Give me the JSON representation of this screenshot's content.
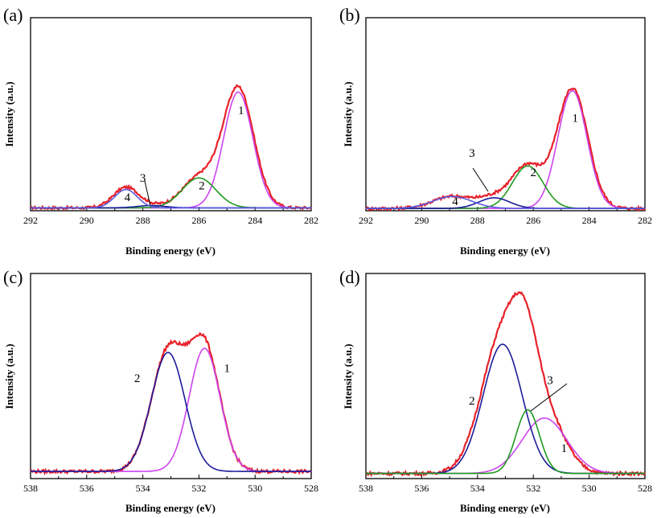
{
  "chart_data": [
    {
      "type": "line",
      "panel": "(a)",
      "xlabel": "Binding energy (eV)",
      "ylabel": "Intensity (a.u.)",
      "xlim": [
        292,
        282
      ],
      "ylim": [
        0,
        1.0
      ],
      "xticks": [
        292,
        290,
        288,
        286,
        284,
        282
      ],
      "series": [
        {
          "name": "envelope",
          "color": "#e8212a",
          "noise": 0.007,
          "baseline": 0.015,
          "peaks": [
            [
              284.6,
              0.62,
              0.55
            ],
            [
              286.0,
              0.155,
              0.6
            ],
            [
              287.7,
              0.012,
              0.5
            ],
            [
              288.6,
              0.105,
              0.45
            ]
          ]
        },
        {
          "name": "1",
          "color": "#cc44ee",
          "baseline": 0.015,
          "peaks": [
            [
              284.6,
              0.6,
              0.52
            ]
          ]
        },
        {
          "name": "2",
          "color": "#1f9a1f",
          "baseline": 0.015,
          "peaks": [
            [
              286.0,
              0.155,
              0.6
            ]
          ]
        },
        {
          "name": "3",
          "color": "#1c1c9a",
          "baseline": 0.015,
          "peaks": [
            [
              287.7,
              0.012,
              0.5
            ]
          ]
        },
        {
          "name": "4",
          "color": "#5a5ae0",
          "baseline": 0.015,
          "peaks": [
            [
              288.6,
              0.095,
              0.4
            ]
          ]
        }
      ],
      "labels": [
        {
          "text": "1",
          "x": 284.5,
          "y": 0.5
        },
        {
          "text": "2",
          "x": 285.9,
          "y": 0.11
        },
        {
          "text": "3",
          "x": 288.0,
          "y": 0.15
        },
        {
          "text": "4",
          "x": 288.55,
          "y": 0.05
        }
      ]
    },
    {
      "type": "line",
      "panel": "(b)",
      "xlabel": "Binding energy (eV)",
      "ylabel": "Intensity (a.u.)",
      "xlim": [
        292,
        282
      ],
      "ylim": [
        0,
        1.0
      ],
      "xticks": [
        292,
        290,
        288,
        286,
        284,
        282
      ],
      "series": [
        {
          "name": "envelope",
          "color": "#e8212a",
          "noise": 0.008,
          "baseline": 0.012,
          "peaks": [
            [
              284.6,
              0.62,
              0.55
            ],
            [
              286.2,
              0.22,
              0.55
            ],
            [
              287.4,
              0.055,
              0.55
            ],
            [
              288.9,
              0.062,
              0.7
            ]
          ]
        },
        {
          "name": "1",
          "color": "#cc44ee",
          "baseline": 0.012,
          "peaks": [
            [
              284.6,
              0.61,
              0.52
            ]
          ]
        },
        {
          "name": "2",
          "color": "#1f9a1f",
          "baseline": 0.012,
          "peaks": [
            [
              286.2,
              0.22,
              0.55
            ]
          ]
        },
        {
          "name": "3",
          "color": "#1c1c9a",
          "baseline": 0.012,
          "peaks": [
            [
              287.4,
              0.055,
              0.55
            ]
          ]
        },
        {
          "name": "4",
          "color": "#5a5ae0",
          "baseline": 0.012,
          "peaks": [
            [
              288.9,
              0.062,
              0.7
            ]
          ]
        }
      ],
      "labels": [
        {
          "text": "1",
          "x": 284.5,
          "y": 0.46
        },
        {
          "text": "2",
          "x": 286.0,
          "y": 0.18
        },
        {
          "text": "3",
          "x": 288.2,
          "y": 0.28
        },
        {
          "text": "4",
          "x": 288.8,
          "y": 0.03
        }
      ]
    },
    {
      "type": "line",
      "panel": "(c)",
      "xlabel": "Binding energy (eV)",
      "ylabel": "Intensity (a.u.)",
      "xlim": [
        538,
        528
      ],
      "ylim": [
        0,
        1.0
      ],
      "xticks": [
        538,
        536,
        534,
        532,
        530,
        528
      ],
      "series": [
        {
          "name": "envelope",
          "color": "#e8212a",
          "noise": 0.008,
          "baseline": 0.035,
          "peaks": [
            [
              531.8,
              0.6,
              0.55
            ],
            [
              533.1,
              0.58,
              0.6
            ]
          ]
        },
        {
          "name": "1",
          "color": "#cc44ee",
          "baseline": 0.035,
          "peaks": [
            [
              531.8,
              0.6,
              0.55
            ]
          ]
        },
        {
          "name": "2",
          "color": "#1c1c9a",
          "baseline": 0.035,
          "peaks": [
            [
              533.1,
              0.58,
              0.6
            ]
          ]
        }
      ],
      "labels": [
        {
          "text": "1",
          "x": 531.0,
          "y": 0.52
        },
        {
          "text": "2",
          "x": 534.2,
          "y": 0.47
        }
      ]
    },
    {
      "type": "line",
      "panel": "(d)",
      "xlabel": "Binding energy (eV)",
      "ylabel": "Intensity (a.u.)",
      "xlim": [
        538,
        528
      ],
      "ylim": [
        0,
        1.0
      ],
      "xticks": [
        538,
        536,
        534,
        532,
        530,
        528
      ],
      "series": [
        {
          "name": "envelope",
          "color": "#e8212a",
          "noise": 0.008,
          "baseline": 0.025,
          "peaks": [
            [
              533.1,
              0.67,
              0.75
            ],
            [
              532.3,
              0.3,
              0.45
            ],
            [
              531.6,
              0.28,
              0.7
            ]
          ]
        },
        {
          "name": "1",
          "color": "#cc44ee",
          "baseline": 0.025,
          "peaks": [
            [
              531.6,
              0.27,
              0.8
            ]
          ]
        },
        {
          "name": "2",
          "color": "#1c1c9a",
          "baseline": 0.025,
          "peaks": [
            [
              533.1,
              0.63,
              0.7
            ]
          ]
        },
        {
          "name": "3",
          "color": "#1f9a1f",
          "baseline": 0.025,
          "peaks": [
            [
              532.2,
              0.31,
              0.42
            ]
          ]
        }
      ],
      "labels": [
        {
          "text": "1",
          "x": 530.9,
          "y": 0.13
        },
        {
          "text": "2",
          "x": 534.2,
          "y": 0.36
        },
        {
          "text": "3",
          "x": 531.4,
          "y": 0.46
        }
      ]
    }
  ]
}
